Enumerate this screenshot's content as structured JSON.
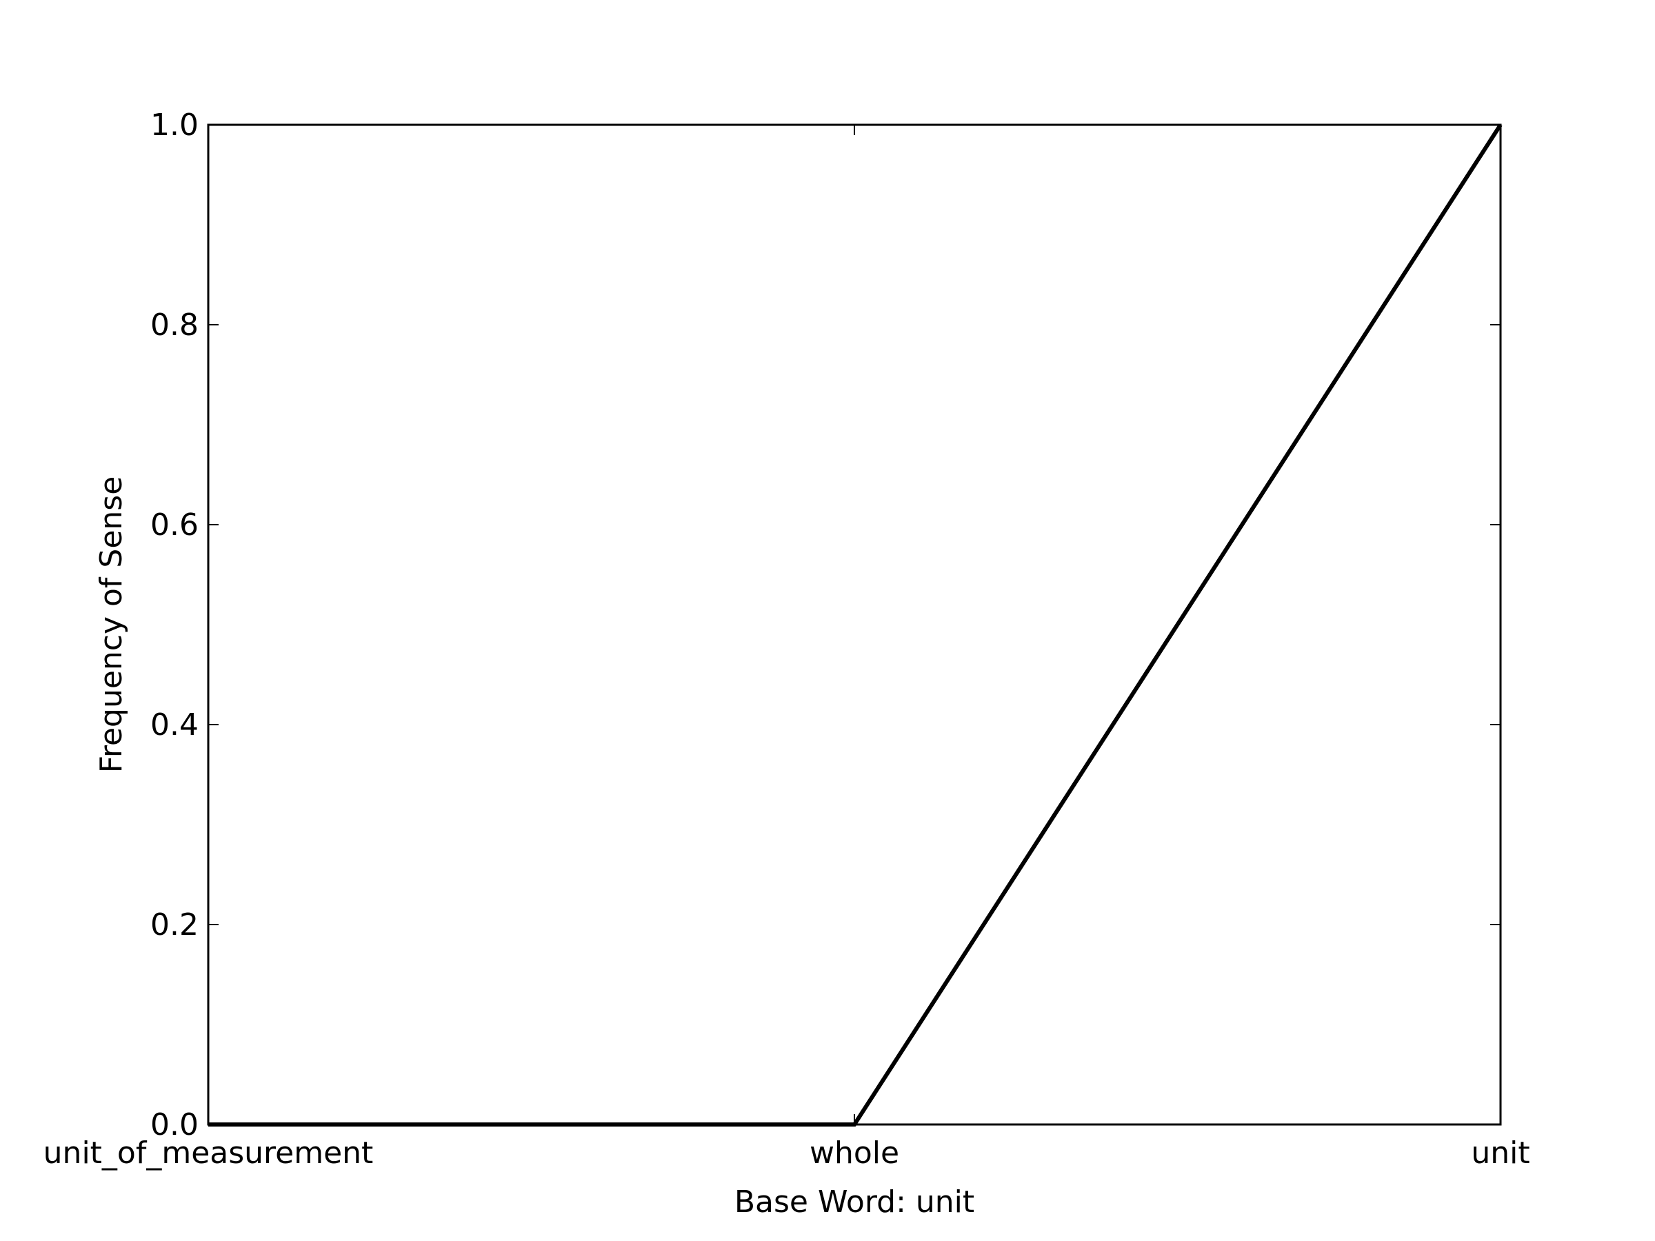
{
  "chart_data": {
    "type": "line",
    "title": "",
    "xlabel": "Base Word: unit",
    "ylabel": "Frequency of Sense",
    "categories": [
      "unit_of_measurement",
      "whole",
      "unit"
    ],
    "series": [
      {
        "values": [
          0.0,
          0.0,
          1.0
        ],
        "color": "#000000"
      }
    ],
    "ylim": [
      0.0,
      1.0
    ],
    "yticks": [
      "0.0",
      "0.2",
      "0.4",
      "0.6",
      "0.8",
      "1.0"
    ],
    "grid": false,
    "legend": "none"
  }
}
